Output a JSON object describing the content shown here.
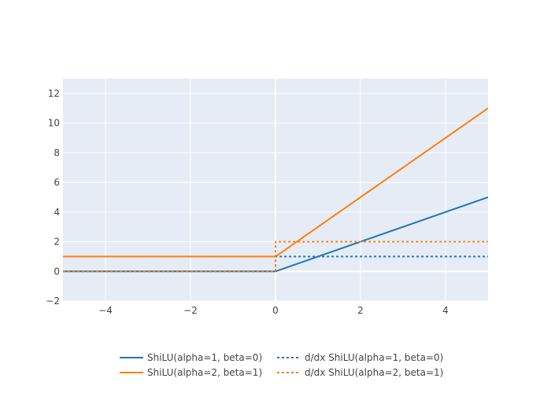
{
  "chart_data": {
    "type": "line",
    "title": "",
    "xlabel": "",
    "ylabel": "",
    "xlim": [
      -5,
      5
    ],
    "ylim": [
      -2,
      13
    ],
    "grid": true,
    "x_ticks": [
      -4,
      -2,
      0,
      2,
      4
    ],
    "y_ticks": [
      -2,
      0,
      2,
      4,
      6,
      8,
      10,
      12
    ],
    "legend_position": "bottom",
    "plot_background": "#e5ecf6",
    "series": [
      {
        "name": "ShiLU(alpha=1, beta=0)",
        "color": "#1f77b4",
        "dash": "solid",
        "x": [
          -5,
          0,
          5
        ],
        "y": [
          0,
          0,
          5
        ]
      },
      {
        "name": "ShiLU(alpha=2, beta=1)",
        "color": "#ff7f0e",
        "dash": "solid",
        "x": [
          -5,
          0,
          5
        ],
        "y": [
          1,
          1,
          11
        ]
      },
      {
        "name": "d/dx ShiLU(alpha=1, beta=0)",
        "color": "#1f77b4",
        "dash": "dot",
        "x": [
          -5,
          0,
          0,
          5
        ],
        "y": [
          0,
          0,
          1,
          1
        ]
      },
      {
        "name": "d/dx ShiLU(alpha=2, beta=1)",
        "color": "#ff7f0e",
        "dash": "dot",
        "x": [
          -5,
          0,
          0,
          5
        ],
        "y": [
          0,
          0,
          2,
          2
        ]
      }
    ]
  }
}
